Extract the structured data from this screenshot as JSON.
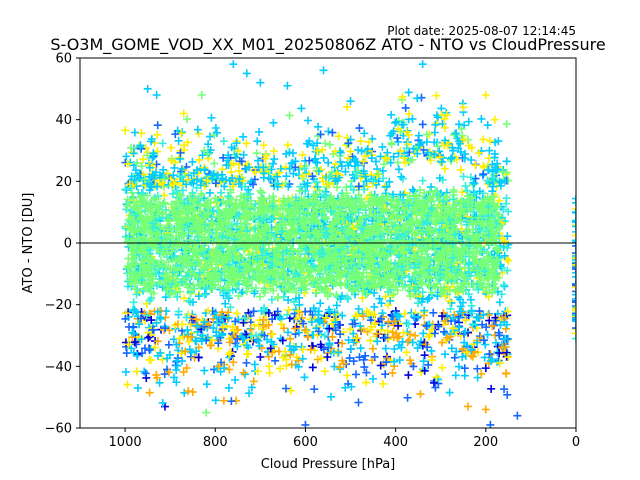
{
  "chart_data": {
    "type": "scatter",
    "plot_date": "Plot date: 2025-08-07 12:14:45",
    "title": "S-O3M_GOME_VOD_XX_M01_20250806Z ATO - NTO vs CloudPressure",
    "xlabel": "Cloud Pressure [hPa]",
    "ylabel": "ATO - NTO [DU]",
    "xlim": [
      1100,
      0
    ],
    "ylim": [
      -60,
      60
    ],
    "x_inverted": true,
    "xticks": [
      1000,
      800,
      600,
      400,
      200,
      0
    ],
    "yticks": [
      -60,
      -40,
      -20,
      0,
      20,
      40,
      60
    ],
    "marker": "+",
    "reference_line_y": 0,
    "grid": false,
    "legend": "none",
    "colors": {
      "dark_blue": "#0000dd",
      "blue": "#1466ff",
      "cyan": "#00ccff",
      "aqua": "#33eedd",
      "light_green": "#77ff77",
      "yellow": "#ffee00",
      "orange": "#ffaa00"
    },
    "main_cloud": {
      "x_range": [
        1000,
        150
      ],
      "core_y_range": [
        -15,
        15
      ],
      "spread_y_range": [
        -60,
        55
      ],
      "dominant_color": "light_green"
    },
    "side_cluster": {
      "x": 0,
      "y_range": [
        -30,
        15
      ]
    },
    "outliers": [
      {
        "x": 950,
        "y": 50,
        "c": "cyan"
      },
      {
        "x": 930,
        "y": 48,
        "c": "cyan"
      },
      {
        "x": 870,
        "y": 42,
        "c": "yellow"
      },
      {
        "x": 760,
        "y": 58,
        "c": "cyan"
      },
      {
        "x": 730,
        "y": 55,
        "c": "cyan"
      },
      {
        "x": 700,
        "y": 52,
        "c": "cyan"
      },
      {
        "x": 640,
        "y": 51,
        "c": "cyan"
      },
      {
        "x": 560,
        "y": 56,
        "c": "cyan"
      },
      {
        "x": 500,
        "y": 46,
        "c": "cyan"
      },
      {
        "x": 340,
        "y": 58,
        "c": "cyan"
      },
      {
        "x": 250,
        "y": 44,
        "c": "yellow"
      },
      {
        "x": 200,
        "y": 48,
        "c": "yellow"
      },
      {
        "x": 180,
        "y": 40,
        "c": "yellow"
      },
      {
        "x": 830,
        "y": 48,
        "c": "light_green"
      },
      {
        "x": 150,
        "y": -37,
        "c": "yellow"
      },
      {
        "x": 130,
        "y": -56,
        "c": "blue"
      },
      {
        "x": 190,
        "y": -59,
        "c": "blue"
      },
      {
        "x": 200,
        "y": -54,
        "c": "orange"
      },
      {
        "x": 860,
        "y": -48,
        "c": "orange"
      },
      {
        "x": 820,
        "y": -55,
        "c": "light_green"
      },
      {
        "x": 600,
        "y": -59,
        "c": "blue"
      },
      {
        "x": 0,
        "y": -31,
        "c": "aqua"
      }
    ]
  }
}
